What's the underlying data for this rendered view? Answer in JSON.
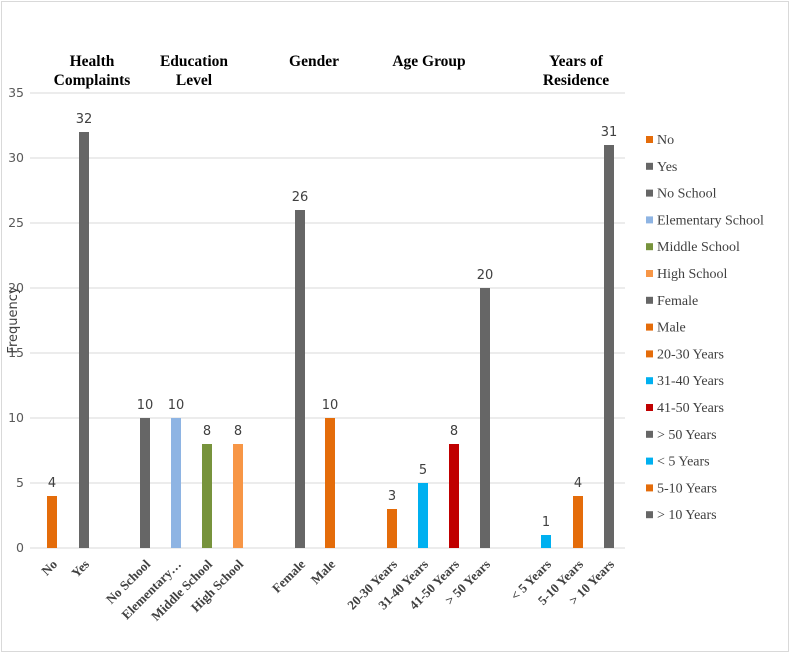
{
  "chart_data": {
    "type": "bar",
    "ylabel": "Frequency",
    "ylim": [
      0,
      35
    ],
    "yticks": [
      0,
      5,
      10,
      15,
      20,
      25,
      30,
      35
    ],
    "grid": true,
    "legend_position": "right",
    "groups": [
      {
        "title": [
          "Health",
          "Complaints"
        ],
        "bars": [
          {
            "label": "No",
            "value": 4,
            "color": "#E46C0A"
          },
          {
            "label": "Yes",
            "value": 32,
            "color": "#666666"
          }
        ]
      },
      {
        "title": [
          "Education",
          "Level"
        ],
        "bars": [
          {
            "label": "No School",
            "value": 10,
            "color": "#666666"
          },
          {
            "label": "Elementary…",
            "value": 10,
            "color": "#8EB4E3"
          },
          {
            "label": "Middle School",
            "value": 8,
            "color": "#77933C"
          },
          {
            "label": "High School",
            "value": 8,
            "color": "#F79646"
          }
        ]
      },
      {
        "title": [
          "Gender"
        ],
        "bars": [
          {
            "label": "Female",
            "value": 26,
            "color": "#666666"
          },
          {
            "label": "Male",
            "value": 10,
            "color": "#E46C0A"
          }
        ]
      },
      {
        "title": [
          "Age Group"
        ],
        "bars": [
          {
            "label": "20-30 Years",
            "value": 3,
            "color": "#E46C0A"
          },
          {
            "label": "31-40 Years",
            "value": 5,
            "color": "#00B0F0"
          },
          {
            "label": "41-50 Years",
            "value": 8,
            "color": "#C00000"
          },
          {
            "label": "> 50 Years",
            "value": 20,
            "color": "#666666"
          }
        ]
      },
      {
        "title": [
          "Years of",
          "Residence"
        ],
        "bars": [
          {
            "label": "< 5 Years",
            "value": 1,
            "color": "#00B0F0"
          },
          {
            "label": "5-10 Years",
            "value": 4,
            "color": "#E46C0A"
          },
          {
            "label": "> 10 Years",
            "value": 31,
            "color": "#666666"
          }
        ]
      }
    ],
    "legend": [
      {
        "label": "No",
        "color": "#E46C0A"
      },
      {
        "label": "Yes",
        "color": "#666666"
      },
      {
        "label": "No School",
        "color": "#666666"
      },
      {
        "label": "Elementary School",
        "color": "#8EB4E3"
      },
      {
        "label": "Middle School",
        "color": "#77933C"
      },
      {
        "label": "High School",
        "color": "#F79646"
      },
      {
        "label": "Female",
        "color": "#666666"
      },
      {
        "label": "Male",
        "color": "#E46C0A"
      },
      {
        "label": "20-30 Years",
        "color": "#E46C0A"
      },
      {
        "label": "31-40 Years",
        "color": "#00B0F0"
      },
      {
        "label": "41-50 Years",
        "color": "#C00000"
      },
      {
        "label": "> 50 Years",
        "color": "#666666"
      },
      {
        "label": "< 5 Years",
        "color": "#00B0F0"
      },
      {
        "label": "5-10 Years",
        "color": "#E46C0A"
      },
      {
        "label": "> 10 Years",
        "color": "#666666"
      }
    ]
  }
}
